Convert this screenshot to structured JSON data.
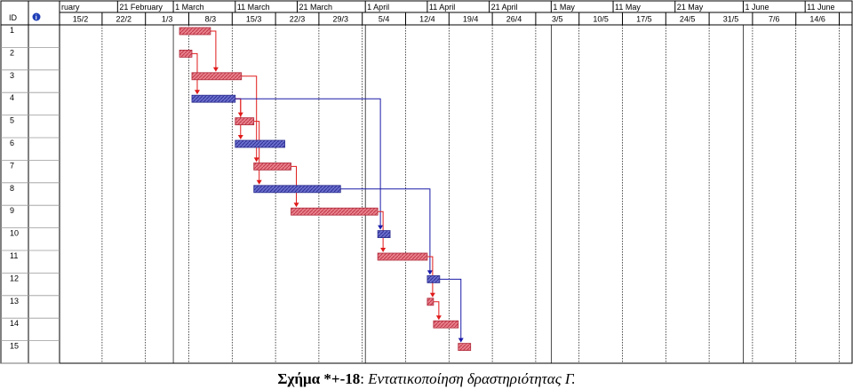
{
  "header": {
    "id_label": "ID",
    "info_icon": "info-icon",
    "periods": [
      "ruary",
      "21 February",
      "1 March",
      "11 March",
      "21 March",
      "1 April",
      "11 April",
      "21 April",
      "1 May",
      "11 May",
      "21 May",
      "1 June",
      "11 June"
    ],
    "dates": [
      "15/2",
      "22/2",
      "1/3",
      "8/3",
      "15/3",
      "22/3",
      "29/3",
      "5/4",
      "12/4",
      "19/4",
      "26/4",
      "3/5",
      "10/5",
      "17/5",
      "24/5",
      "31/5",
      "7/6",
      "14/6"
    ]
  },
  "colors": {
    "normal_task": "#e06b7a",
    "critical_task": "#5a5fc0",
    "normal_link": "#e01a1a",
    "critical_link": "#1a1aa8",
    "grid": "#000000"
  },
  "tasks": [
    {
      "id": "1",
      "kind": "normal",
      "start": "2024-03-02",
      "end": "2024-03-07"
    },
    {
      "id": "2",
      "kind": "normal",
      "start": "2024-03-02",
      "end": "2024-03-04"
    },
    {
      "id": "3",
      "kind": "normal",
      "start": "2024-03-04",
      "end": "2024-03-12"
    },
    {
      "id": "4",
      "kind": "critical",
      "start": "2024-03-04",
      "end": "2024-03-11"
    },
    {
      "id": "5",
      "kind": "normal",
      "start": "2024-03-11",
      "end": "2024-03-14"
    },
    {
      "id": "6",
      "kind": "critical",
      "start": "2024-03-11",
      "end": "2024-03-19"
    },
    {
      "id": "7",
      "kind": "normal",
      "start": "2024-03-14",
      "end": "2024-03-20"
    },
    {
      "id": "8",
      "kind": "critical",
      "start": "2024-03-14",
      "end": "2024-03-28"
    },
    {
      "id": "9",
      "kind": "normal",
      "start": "2024-03-20",
      "end": "2024-04-03"
    },
    {
      "id": "10",
      "kind": "critical",
      "start": "2024-04-03",
      "end": "2024-04-05"
    },
    {
      "id": "11",
      "kind": "normal",
      "start": "2024-04-03",
      "end": "2024-04-11"
    },
    {
      "id": "12",
      "kind": "critical",
      "start": "2024-04-11",
      "end": "2024-04-13"
    },
    {
      "id": "13",
      "kind": "normal",
      "start": "2024-04-11",
      "end": "2024-04-12"
    },
    {
      "id": "14",
      "kind": "normal",
      "start": "2024-04-12",
      "end": "2024-04-16"
    },
    {
      "id": "15",
      "kind": "normal",
      "start": "2024-04-16",
      "end": "2024-04-18"
    }
  ],
  "links": [
    {
      "from": "1",
      "to": "3",
      "kind": "normal"
    },
    {
      "from": "2",
      "to": "4",
      "kind": "normal"
    },
    {
      "from": "4",
      "to": "5",
      "kind": "normal"
    },
    {
      "from": "4",
      "to": "6",
      "kind": "normal"
    },
    {
      "from": "3",
      "to": "7",
      "kind": "normal"
    },
    {
      "from": "5",
      "to": "8",
      "kind": "normal"
    },
    {
      "from": "7",
      "to": "9",
      "kind": "normal"
    },
    {
      "from": "4",
      "to": "10",
      "kind": "critical"
    },
    {
      "from": "9",
      "to": "11",
      "kind": "normal"
    },
    {
      "from": "8",
      "to": "12",
      "kind": "critical"
    },
    {
      "from": "11",
      "to": "13",
      "kind": "normal"
    },
    {
      "from": "13",
      "to": "14",
      "kind": "normal"
    },
    {
      "from": "12",
      "to": "15",
      "kind": "critical"
    }
  ],
  "caption": {
    "label": "Σχήμα *+-18",
    "separator": ": ",
    "text": "Εντατικοποίηση δραστηριότητας Γ."
  }
}
